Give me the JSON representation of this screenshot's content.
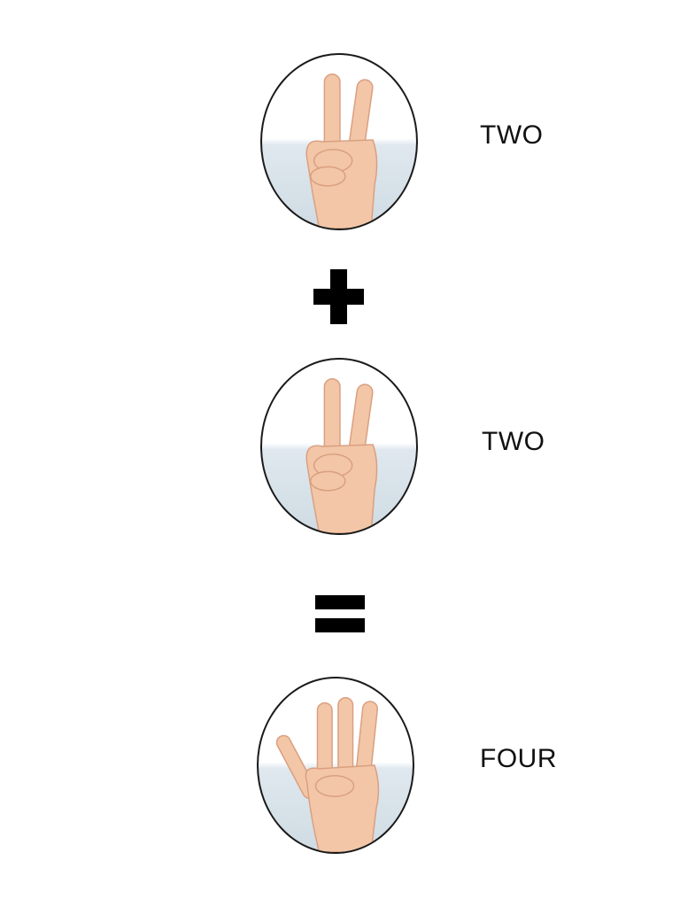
{
  "equation": {
    "first_operand": {
      "label": "TWO",
      "fingers": 2
    },
    "operator": "plus",
    "second_operand": {
      "label": "TWO",
      "fingers": 2
    },
    "result_symbol": "equals",
    "result": {
      "label": "FOUR",
      "fingers": 4
    }
  },
  "colors": {
    "skin": "#f2c6a6",
    "skin_shadow": "#d99f80",
    "outline": "#1a1a1a",
    "symbol": "#000000"
  }
}
